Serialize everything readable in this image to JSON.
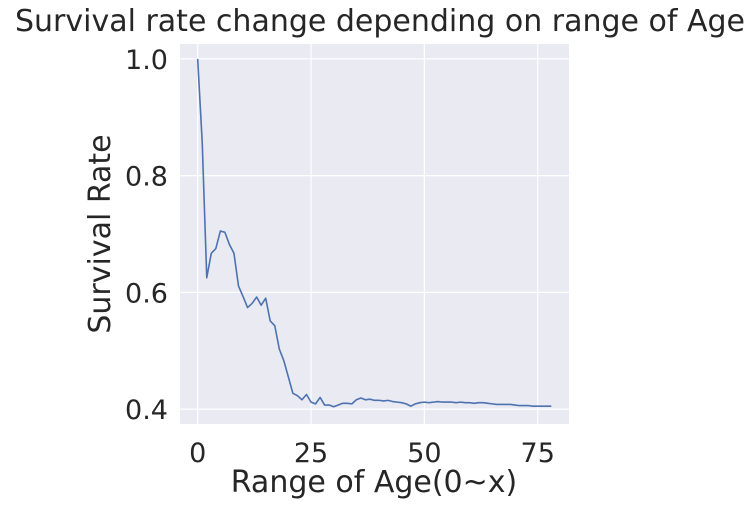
{
  "chart_data": {
    "type": "line",
    "title": "Survival rate change depending on range of Age",
    "xlabel": "Range of Age(0~x)",
    "ylabel": "Survival Rate",
    "xlim": [
      -3.9,
      81.9
    ],
    "ylim": [
      0.3745,
      1.0255
    ],
    "xticks": [
      0,
      25,
      50,
      75
    ],
    "yticks": [
      0.4,
      0.6,
      0.8,
      1.0
    ],
    "xtick_labels": [
      "0",
      "25",
      "50",
      "75"
    ],
    "ytick_labels": [
      "0.4",
      "0.6",
      "0.8",
      "1.0"
    ],
    "grid": true,
    "colors": {
      "background": "#eaeaf2",
      "grid": "#ffffff",
      "line": "#4c72b0",
      "text": "#262626"
    },
    "series": [
      {
        "x": [
          0,
          1,
          2,
          3,
          4,
          5,
          6,
          7,
          8,
          9,
          10,
          11,
          12,
          13,
          14,
          15,
          16,
          17,
          18,
          19,
          20,
          21,
          22,
          23,
          24,
          25,
          26,
          27,
          28,
          29,
          30,
          31,
          32,
          33,
          34,
          35,
          36,
          37,
          38,
          39,
          40,
          41,
          42,
          43,
          44,
          45,
          46,
          47,
          48,
          49,
          50,
          51,
          52,
          53,
          54,
          55,
          56,
          57,
          58,
          59,
          60,
          61,
          62,
          63,
          64,
          65,
          66,
          67,
          68,
          69,
          70,
          71,
          72,
          73,
          74,
          75,
          76,
          77,
          78
        ],
        "y": [
          1.0,
          0.857,
          0.625,
          0.667,
          0.675,
          0.705,
          0.703,
          0.682,
          0.667,
          0.611,
          0.593,
          0.574,
          0.581,
          0.592,
          0.578,
          0.59,
          0.551,
          0.543,
          0.503,
          0.483,
          0.455,
          0.427,
          0.423,
          0.416,
          0.425,
          0.412,
          0.409,
          0.42,
          0.407,
          0.407,
          0.404,
          0.407,
          0.41,
          0.41,
          0.409,
          0.416,
          0.419,
          0.416,
          0.417,
          0.415,
          0.415,
          0.414,
          0.415,
          0.413,
          0.412,
          0.411,
          0.409,
          0.405,
          0.409,
          0.411,
          0.412,
          0.411,
          0.412,
          0.413,
          0.412,
          0.412,
          0.412,
          0.411,
          0.412,
          0.411,
          0.411,
          0.41,
          0.411,
          0.411,
          0.41,
          0.409,
          0.408,
          0.408,
          0.408,
          0.408,
          0.407,
          0.406,
          0.406,
          0.406,
          0.405,
          0.405,
          0.405,
          0.405,
          0.405
        ]
      }
    ]
  }
}
